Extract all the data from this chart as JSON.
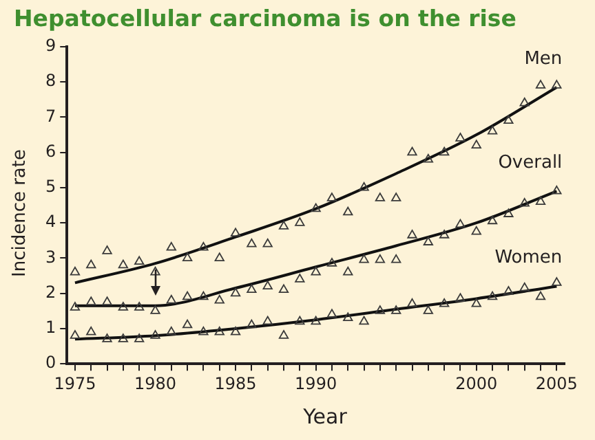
{
  "chart_data": {
    "type": "scatter",
    "title": "Hepatocellular carcinoma is on the rise",
    "xlabel": "Year",
    "ylabel": "Incidence rate",
    "xlim": [
      1974.5,
      2005.5
    ],
    "ylim": [
      0,
      9
    ],
    "yticks": [
      0,
      1,
      2,
      3,
      4,
      5,
      6,
      7,
      8,
      9
    ],
    "xticks": [
      1975,
      {
        "value": 1976,
        "label": null
      },
      {
        "value": 1977,
        "label": null
      },
      {
        "value": 1978,
        "label": null
      },
      {
        "value": 1979,
        "label": null
      },
      1980,
      {
        "value": 1981,
        "label": null
      },
      {
        "value": 1982,
        "label": null
      },
      {
        "value": 1983,
        "label": null
      },
      {
        "value": 1984,
        "label": null
      },
      1985,
      {
        "value": 1986,
        "label": null
      },
      {
        "value": 1987,
        "label": null
      },
      {
        "value": 1988,
        "label": null
      },
      {
        "value": 1989,
        "label": null
      },
      1990,
      {
        "value": 1991,
        "label": null
      },
      {
        "value": 1992,
        "label": null
      },
      {
        "value": 1993,
        "label": null
      },
      {
        "value": 1994,
        "label": null
      },
      {
        "value": 1995,
        "label": null
      },
      {
        "value": 1996,
        "label": null
      },
      {
        "value": 1997,
        "label": null
      },
      {
        "value": 1998,
        "label": null
      },
      {
        "value": 1999,
        "label": null
      },
      2000,
      {
        "value": 2001,
        "label": null
      },
      {
        "value": 2002,
        "label": null
      },
      {
        "value": 2003,
        "label": null
      },
      {
        "value": 2004,
        "label": null
      },
      2005
    ],
    "x": [
      1975,
      1976,
      1977,
      1978,
      1979,
      1980,
      1981,
      1982,
      1983,
      1984,
      1985,
      1986,
      1987,
      1988,
      1989,
      1990,
      1991,
      1992,
      1993,
      1994,
      1995,
      1996,
      1997,
      1998,
      1999,
      2000,
      2001,
      2002,
      2003,
      2004,
      2005
    ],
    "grid": false,
    "legend": false,
    "series": [
      {
        "marker": "triangle",
        "color": "#3a3a3a",
        "values": [
          2.6,
          2.8,
          3.2,
          2.8,
          2.9,
          2.6,
          3.3,
          3.0,
          3.3,
          3.0,
          3.7,
          3.4,
          3.4,
          3.9,
          4.0,
          4.4,
          4.7,
          4.3,
          5.0,
          4.7,
          4.7,
          6.0,
          5.8,
          6.0,
          6.4,
          6.2,
          6.6,
          6.9,
          7.4,
          7.9,
          7.9
        ]
      },
      {
        "marker": "triangle",
        "color": "#3a3a3a",
        "values": [
          1.6,
          1.75,
          1.75,
          1.6,
          1.6,
          1.5,
          1.8,
          1.9,
          1.9,
          1.8,
          2.0,
          2.1,
          2.2,
          2.1,
          2.4,
          2.6,
          2.85,
          2.6,
          2.95,
          2.95,
          2.95,
          3.65,
          3.45,
          3.65,
          3.95,
          3.75,
          4.05,
          4.25,
          4.55,
          4.6,
          4.9
        ]
      },
      {
        "marker": "triangle",
        "color": "#3a3a3a",
        "values": [
          0.8,
          0.9,
          0.7,
          0.7,
          0.7,
          0.8,
          0.9,
          1.1,
          0.9,
          0.9,
          0.9,
          1.1,
          1.2,
          0.8,
          1.2,
          1.2,
          1.4,
          1.3,
          1.2,
          1.5,
          1.5,
          1.7,
          1.5,
          1.7,
          1.85,
          1.7,
          1.9,
          2.05,
          2.15,
          1.9,
          2.3
        ]
      },
      {
        "type": "line",
        "name": "Men",
        "marker": "none",
        "color": "#111111",
        "x": [
          1975,
          1980,
          1985,
          1990,
          1995,
          2000,
          2005
        ],
        "values": [
          2.3,
          2.85,
          3.6,
          4.4,
          5.4,
          6.5,
          7.85
        ]
      },
      {
        "type": "line",
        "name": "Overall",
        "marker": "none",
        "color": "#111111",
        "x": [
          1975,
          1980,
          1985,
          1990,
          1995,
          2000,
          2005
        ],
        "values": [
          1.65,
          1.65,
          2.15,
          2.75,
          3.35,
          4.0,
          4.9
        ]
      },
      {
        "type": "line",
        "name": "Women",
        "marker": "none",
        "color": "#111111",
        "x": [
          1975,
          1980,
          1985,
          1990,
          1995,
          2000,
          2005
        ],
        "values": [
          0.7,
          0.8,
          1.0,
          1.25,
          1.55,
          1.85,
          2.2
        ]
      }
    ]
  }
}
